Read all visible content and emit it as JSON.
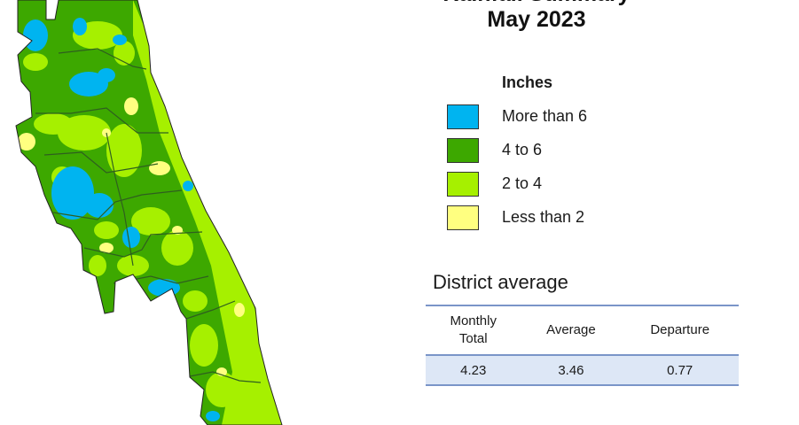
{
  "title_line1": "Rainfall Summary",
  "title_line2": "May 2023",
  "legend": {
    "title": "Inches",
    "items": [
      {
        "label": "More than 6",
        "color": "#00b4f0"
      },
      {
        "label": "4 to 6",
        "color": "#3da800"
      },
      {
        "label": "2 to 4",
        "color": "#a6f000"
      },
      {
        "label": "Less than 2",
        "color": "#ffff80"
      }
    ]
  },
  "district_average": {
    "title": "District average",
    "headers": {
      "monthly_line1": "Monthly",
      "monthly_line2": "Total",
      "average": "Average",
      "departure": "Departure"
    },
    "row": {
      "monthly_total": "4.23",
      "average": "3.46",
      "departure": "0.77"
    }
  },
  "colors": {
    "table_rule": "#7a95c8",
    "table_row_bg": "#dde7f6",
    "county_lines": "#2f5f1f"
  }
}
